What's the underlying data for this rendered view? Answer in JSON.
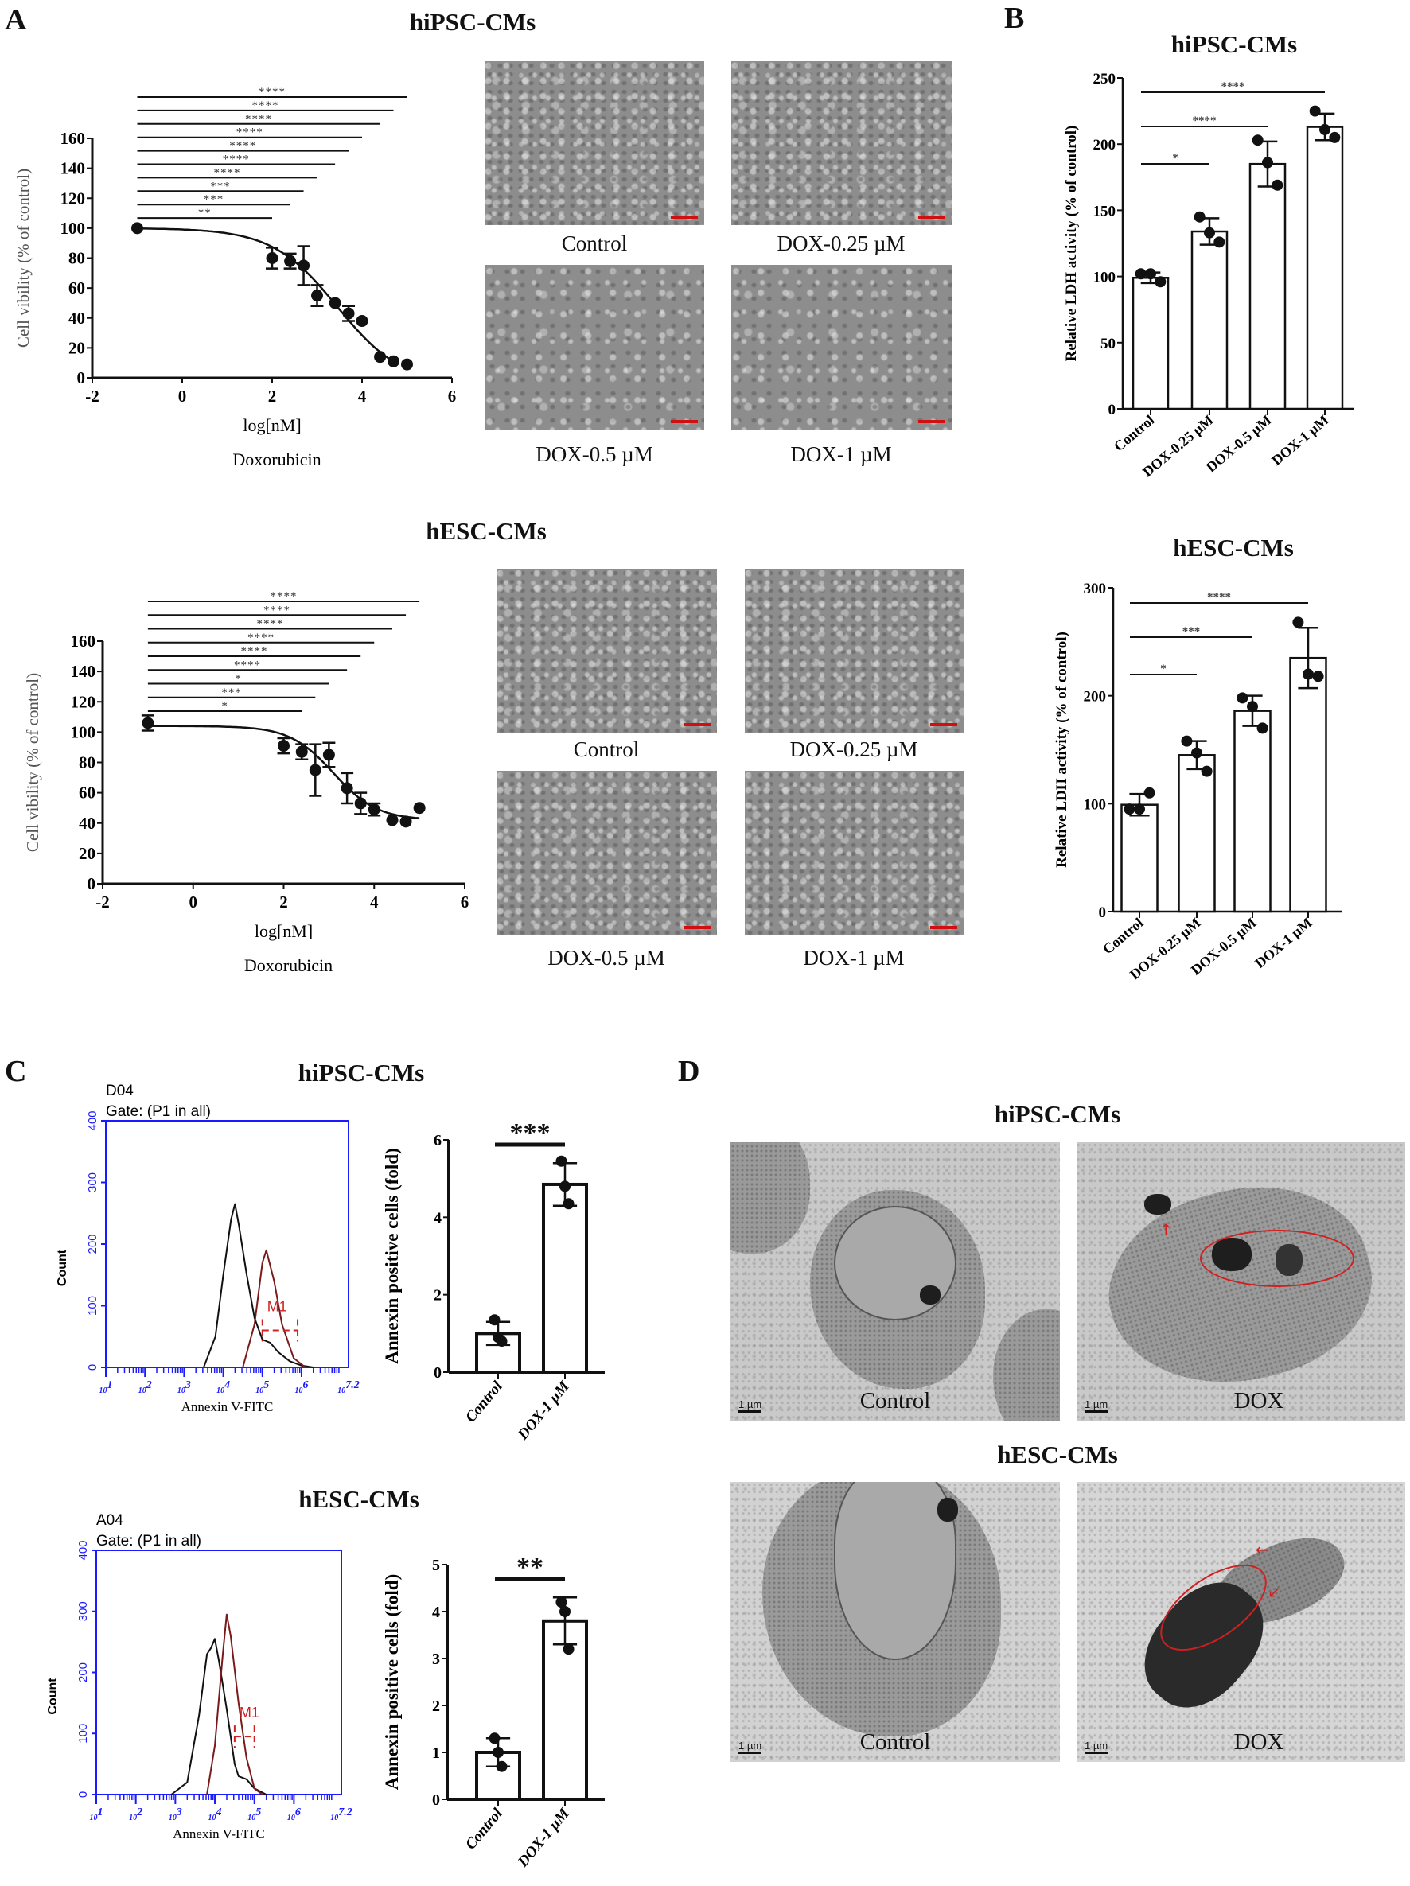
{
  "panels": {
    "A": "A",
    "B": "B",
    "C": "C",
    "D": "D"
  },
  "titles": {
    "a_top": "hiPSC-CMs",
    "a_bottom": "hESC-CMs",
    "b_top": "hiPSC-CMs",
    "b_bottom": "hESC-CMs",
    "c_top": "hiPSC-CMs",
    "c_bottom": "hESC-CMs",
    "d_top": "hiPSC-CMs",
    "d_bottom": "hESC-CMs"
  },
  "micrographs": {
    "a_top": [
      "Control",
      "DOX-0.25 µM",
      "DOX-0.5 µM",
      "DOX-1 µM"
    ],
    "a_bottom": [
      "Control",
      "DOX-0.25 µM",
      "DOX-0.5 µM",
      "DOX-1 µM"
    ]
  },
  "tem": {
    "top": {
      "control": "Control",
      "dox": "DOX",
      "scale": "1 µm"
    },
    "bottom": {
      "control": "Control",
      "dox": "DOX",
      "scale": "1 µm"
    }
  },
  "colors": {
    "axis": "#111111",
    "flow_axis": "#1a1aff",
    "control_histogram": "#111111",
    "dox_histogram": "#7a1a1a",
    "marker": "#d02020",
    "scale_bar": "#d01010"
  },
  "chart_data": [
    {
      "type": "scatter",
      "panel": "A",
      "group": "hiPSC-CMs",
      "xlabel": "log[nM]",
      "xlabel2": "Doxorubicin",
      "ylabel": "Cell vibility (% of control)",
      "xlim": [
        -2,
        6
      ],
      "ylim": [
        0,
        160
      ],
      "xticks": [
        -2,
        0,
        2,
        4,
        6
      ],
      "yticks": [
        0,
        20,
        40,
        60,
        80,
        100,
        120,
        140,
        160
      ],
      "fit": "sigmoidal dose-response",
      "points": [
        {
          "x": -1,
          "y": 100,
          "err": 0
        },
        {
          "x": 2,
          "y": 80,
          "err": 7
        },
        {
          "x": 2.4,
          "y": 78,
          "err": 5
        },
        {
          "x": 2.7,
          "y": 75,
          "err": 13
        },
        {
          "x": 3,
          "y": 55,
          "err": 7
        },
        {
          "x": 3.4,
          "y": 50,
          "err": 0
        },
        {
          "x": 3.7,
          "y": 43,
          "err": 5
        },
        {
          "x": 4,
          "y": 38,
          "err": 0
        },
        {
          "x": 4.4,
          "y": 14,
          "err": 0
        },
        {
          "x": 4.7,
          "y": 11,
          "err": 0
        },
        {
          "x": 5,
          "y": 9,
          "err": 0
        }
      ],
      "significance": [
        {
          "from": -1,
          "to": 5,
          "label": "****"
        },
        {
          "from": -1,
          "to": 4.7,
          "label": "****"
        },
        {
          "from": -1,
          "to": 4.4,
          "label": "****"
        },
        {
          "from": -1,
          "to": 4,
          "label": "****"
        },
        {
          "from": -1,
          "to": 3.7,
          "label": "****"
        },
        {
          "from": -1,
          "to": 3.4,
          "label": "****"
        },
        {
          "from": -1,
          "to": 3,
          "label": "****"
        },
        {
          "from": -1,
          "to": 2.7,
          "label": "***"
        },
        {
          "from": -1,
          "to": 2.4,
          "label": "***"
        },
        {
          "from": -1,
          "to": 2,
          "label": "**"
        }
      ]
    },
    {
      "type": "scatter",
      "panel": "A",
      "group": "hESC-CMs",
      "xlabel": "log[nM]",
      "xlabel2": "Doxorubicin",
      "ylabel": "Cell vibility (% of control)",
      "xlim": [
        -2,
        6
      ],
      "ylim": [
        0,
        160
      ],
      "xticks": [
        -2,
        0,
        2,
        4,
        6
      ],
      "yticks": [
        0,
        20,
        40,
        60,
        80,
        100,
        120,
        140,
        160
      ],
      "fit": "sigmoidal dose-response",
      "points": [
        {
          "x": -1,
          "y": 106,
          "err": 5
        },
        {
          "x": 2,
          "y": 91,
          "err": 5
        },
        {
          "x": 2.4,
          "y": 87,
          "err": 5
        },
        {
          "x": 2.7,
          "y": 75,
          "err": 17
        },
        {
          "x": 3,
          "y": 85,
          "err": 8
        },
        {
          "x": 3.4,
          "y": 63,
          "err": 10
        },
        {
          "x": 3.7,
          "y": 53,
          "err": 7
        },
        {
          "x": 4,
          "y": 49,
          "err": 4
        },
        {
          "x": 4.4,
          "y": 42,
          "err": 0
        },
        {
          "x": 4.7,
          "y": 41,
          "err": 0
        },
        {
          "x": 5,
          "y": 50,
          "err": 0
        }
      ],
      "significance": [
        {
          "from": -1,
          "to": 5,
          "label": "****"
        },
        {
          "from": -1,
          "to": 4.7,
          "label": "****"
        },
        {
          "from": -1,
          "to": 4.4,
          "label": "****"
        },
        {
          "from": -1,
          "to": 4,
          "label": "****"
        },
        {
          "from": -1,
          "to": 3.7,
          "label": "****"
        },
        {
          "from": -1,
          "to": 3.4,
          "label": "****"
        },
        {
          "from": -1,
          "to": 3,
          "label": "*"
        },
        {
          "from": -1,
          "to": 2.7,
          "label": "***"
        },
        {
          "from": -1,
          "to": 2.4,
          "label": "*"
        }
      ]
    },
    {
      "type": "bar",
      "panel": "B",
      "group": "hiPSC-CMs",
      "ylabel": "Relative LDH activity (% of control)",
      "categories": [
        "Control",
        "DOX-0.25 µM",
        "DOX-0.5 µM",
        "DOX-1 µM"
      ],
      "values": [
        99,
        134,
        185,
        213
      ],
      "errors": [
        4,
        10,
        17,
        10
      ],
      "replicates": [
        [
          102,
          102,
          96
        ],
        [
          145,
          133,
          126
        ],
        [
          203,
          186,
          169
        ],
        [
          225,
          211,
          205
        ]
      ],
      "ylim": [
        0,
        250
      ],
      "yticks": [
        0,
        50,
        100,
        150,
        200,
        250
      ],
      "significance": [
        {
          "from": 0,
          "to": 1,
          "label": "*"
        },
        {
          "from": 0,
          "to": 2,
          "label": "****"
        },
        {
          "from": 0,
          "to": 3,
          "label": "****"
        }
      ]
    },
    {
      "type": "bar",
      "panel": "B",
      "group": "hESC-CMs",
      "ylabel": "Relative LDH activity (% of control)",
      "categories": [
        "Control",
        "DOX-0.25 µM",
        "DOX-0.5 µM",
        "DOX-1 µM"
      ],
      "values": [
        99,
        145,
        186,
        235
      ],
      "errors": [
        10,
        13,
        14,
        28
      ],
      "replicates": [
        [
          95,
          95,
          110
        ],
        [
          158,
          147,
          130
        ],
        [
          198,
          190,
          170
        ],
        [
          268,
          220,
          218
        ]
      ],
      "ylim": [
        0,
        300
      ],
      "yticks": [
        0,
        100,
        200,
        300
      ],
      "significance": [
        {
          "from": 0,
          "to": 1,
          "label": "*"
        },
        {
          "from": 0,
          "to": 2,
          "label": "***"
        },
        {
          "from": 0,
          "to": 3,
          "label": "****"
        }
      ]
    },
    {
      "type": "area",
      "panel": "C",
      "group": "hiPSC-CMs",
      "sample": "D04",
      "gate": "Gate: (P1 in all)",
      "xlabel": "Annexin V-FITC",
      "ylabel": "Count",
      "xscale": "log",
      "xlim": [
        1,
        7.2
      ],
      "xticks": [
        1,
        2,
        3,
        4,
        5,
        6,
        7.2
      ],
      "ylim": [
        0,
        400
      ],
      "yticks": [
        0,
        100,
        200,
        300,
        400
      ],
      "marker": {
        "label": "M1",
        "from": 5.0,
        "to": 5.9,
        "y": 60
      },
      "series": [
        {
          "role": "control",
          "points": [
            [
              3.5,
              0
            ],
            [
              3.8,
              50
            ],
            [
              4.0,
              150
            ],
            [
              4.2,
              240
            ],
            [
              4.3,
              265
            ],
            [
              4.4,
              230
            ],
            [
              4.6,
              150
            ],
            [
              4.8,
              80
            ],
            [
              5.0,
              45
            ],
            [
              5.2,
              40
            ],
            [
              5.4,
              25
            ],
            [
              5.7,
              10
            ],
            [
              6.0,
              3
            ],
            [
              6.3,
              0
            ]
          ]
        },
        {
          "role": "dox",
          "points": [
            [
              4.5,
              0
            ],
            [
              4.8,
              70
            ],
            [
              5.0,
              170
            ],
            [
              5.1,
              190
            ],
            [
              5.3,
              140
            ],
            [
              5.5,
              70
            ],
            [
              5.8,
              15
            ],
            [
              6.1,
              0
            ]
          ]
        }
      ]
    },
    {
      "type": "bar",
      "panel": "C",
      "group": "hiPSC-CMs",
      "ylabel": "Annexin positive cells (fold)",
      "categories": [
        "Control",
        "DOX-1 µM"
      ],
      "values": [
        1.0,
        4.85
      ],
      "errors": [
        0.3,
        0.55
      ],
      "replicates": [
        [
          1.35,
          0.9,
          0.8
        ],
        [
          5.45,
          4.8,
          4.35
        ]
      ],
      "ylim": [
        0,
        6
      ],
      "yticks": [
        0,
        2,
        4,
        6
      ],
      "significance": [
        {
          "from": 0,
          "to": 1,
          "label": "***"
        }
      ]
    },
    {
      "type": "area",
      "panel": "C",
      "group": "hESC-CMs",
      "sample": "A04",
      "gate": "Gate: (P1 in all)",
      "xlabel": "Annexin V-FITC",
      "ylabel": "Count",
      "xscale": "log",
      "xlim": [
        1,
        7.2
      ],
      "xticks": [
        1,
        2,
        3,
        4,
        5,
        6,
        7.2
      ],
      "ylim": [
        0,
        400
      ],
      "yticks": [
        0,
        100,
        200,
        300,
        400
      ],
      "marker": {
        "label": "M1",
        "from": 4.5,
        "to": 5.0,
        "y": 95
      },
      "series": [
        {
          "role": "control",
          "points": [
            [
              2.9,
              0
            ],
            [
              3.3,
              20
            ],
            [
              3.6,
              130
            ],
            [
              3.8,
              230
            ],
            [
              3.9,
              240
            ],
            [
              4.0,
              255
            ],
            [
              4.1,
              220
            ],
            [
              4.3,
              140
            ],
            [
              4.5,
              50
            ],
            [
              4.6,
              30
            ],
            [
              4.8,
              25
            ],
            [
              5.0,
              10
            ],
            [
              5.3,
              0
            ]
          ]
        },
        {
          "role": "dox",
          "points": [
            [
              3.8,
              0
            ],
            [
              4.0,
              80
            ],
            [
              4.2,
              230
            ],
            [
              4.3,
              295
            ],
            [
              4.4,
              260
            ],
            [
              4.6,
              150
            ],
            [
              4.8,
              60
            ],
            [
              5.0,
              10
            ],
            [
              5.2,
              0
            ]
          ]
        }
      ]
    },
    {
      "type": "bar",
      "panel": "C",
      "group": "hESC-CMs",
      "ylabel": "Annexin positive cells (fold)",
      "categories": [
        "Control",
        "DOX-1 µM"
      ],
      "values": [
        1.0,
        3.8
      ],
      "errors": [
        0.3,
        0.5
      ],
      "replicates": [
        [
          1.3,
          1.0,
          0.7
        ],
        [
          4.2,
          4.0,
          3.2
        ]
      ],
      "ylim": [
        0,
        5
      ],
      "yticks": [
        0,
        1,
        2,
        3,
        4,
        5
      ],
      "significance": [
        {
          "from": 0,
          "to": 1,
          "label": "**"
        }
      ]
    }
  ]
}
